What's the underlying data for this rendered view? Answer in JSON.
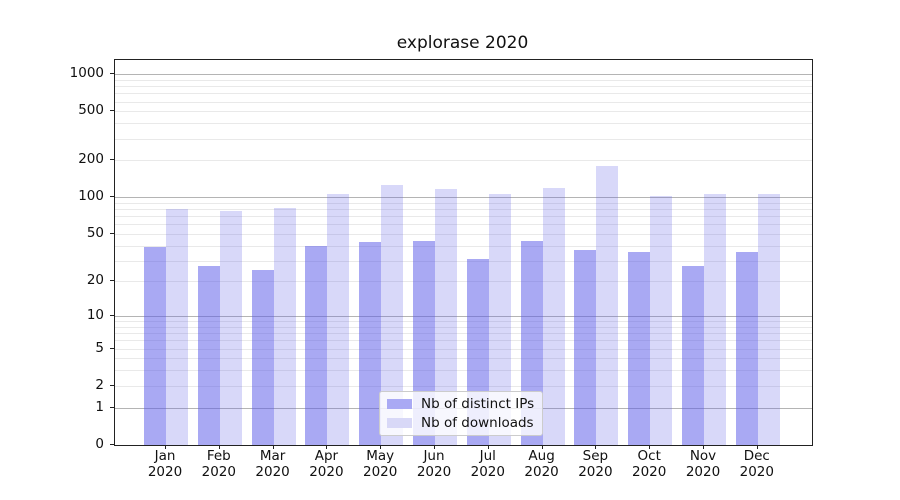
{
  "chart_data": {
    "type": "bar",
    "title": "explorase 2020",
    "year": "2020",
    "months": [
      "Jan",
      "Feb",
      "Mar",
      "Apr",
      "May",
      "Jun",
      "Jul",
      "Aug",
      "Sep",
      "Oct",
      "Nov",
      "Dec"
    ],
    "categories": [
      "Jan 2020",
      "Feb 2020",
      "Mar 2020",
      "Apr 2020",
      "May 2020",
      "Jun 2020",
      "Jul 2020",
      "Aug 2020",
      "Sep 2020",
      "Oct 2020",
      "Nov 2020",
      "Dec 2020"
    ],
    "series": [
      {
        "name": "Nb of distinct IPs",
        "color": "rgba(90,90,232,0.52)",
        "legend_color": "#a9a9f4",
        "values": [
          39,
          27,
          25,
          40,
          43,
          44,
          31,
          44,
          37,
          36,
          27,
          36
        ]
      },
      {
        "name": "Nb of downloads",
        "color": "rgba(90,90,232,0.24)",
        "legend_color": "#d8d8f7",
        "values": [
          81,
          78,
          82,
          107,
          127,
          117,
          107,
          120,
          180,
          103,
          107,
          108
        ]
      }
    ],
    "yscale": "log1p",
    "yticks": [
      0,
      1,
      2,
      5,
      10,
      20,
      50,
      100,
      200,
      500,
      1000
    ],
    "ylim": [
      0,
      1290
    ],
    "grid": {
      "major": [
        1,
        10,
        100,
        1000
      ],
      "minor": [
        2,
        3,
        4,
        5,
        6,
        7,
        8,
        9,
        20,
        30,
        40,
        50,
        60,
        70,
        80,
        90,
        200,
        300,
        400,
        500,
        600,
        700,
        800,
        900
      ],
      "major_color": "#b4b4b4",
      "minor_color": "#e9e9e9"
    },
    "legend_position": "lower center",
    "background_color": "#ffffff"
  }
}
